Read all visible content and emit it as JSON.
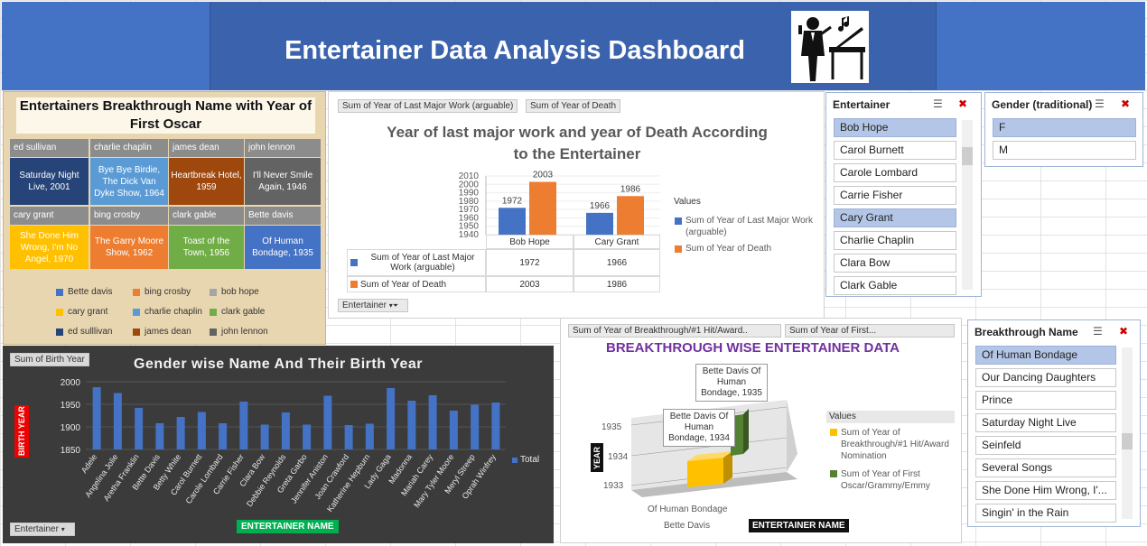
{
  "header": {
    "title": "Entertainer Data Analysis Dashboard"
  },
  "treemap_panel": {
    "title": "Entertainers  Breakthrough Name with Year of First Oscar",
    "rows": [
      {
        "heads": [
          "ed sullivan",
          "charlie chaplin",
          "james dean",
          "john lennon"
        ],
        "cells": [
          "Saturday Night Live, 2001",
          "Bye Bye Birdie, The Dick Van Dyke Show, 1964",
          "Heartbreak Hotel, 1959",
          "I'll Never Smile Again, 1946"
        ]
      },
      {
        "heads": [
          "cary grant",
          "bing crosby",
          "clark gable",
          "Bette davis"
        ],
        "cells": [
          "She Done Him Wrong, I'm No Angel, 1970",
          "The Garry Moore Show, 1962",
          "Toast of the Town, 1956",
          "Of Human Bondage, 1935"
        ]
      }
    ],
    "legend": [
      "Bette davis",
      "bing crosby",
      "bob hope",
      "cary grant",
      "charlie chaplin",
      "clark gable",
      "ed sulllivan",
      "james dean",
      "john lennon"
    ],
    "colors": {
      "Bette davis": "#4472c4",
      "bing crosby": "#ed7d31",
      "bob hope": "#a5a5a5",
      "cary grant": "#ffc000",
      "charlie chaplin": "#5b9bd5",
      "clark gable": "#70ad47",
      "ed sulllivan": "#264478",
      "james dean": "#9e480e",
      "john lennon": "#636363"
    }
  },
  "pivot1": {
    "field_buttons": [
      "Sum of Year of Last Major Work (arguable)",
      "Sum of Year of Death"
    ],
    "title": "Year of last major work and year of Death According to the Entertainer",
    "legend_title": "Values",
    "filter_button": "Entertainer",
    "table": {
      "row_labels": [
        "Sum of Year of Last Major Work (arguable)",
        "Sum of Year of Death"
      ],
      "cols": [
        "Bob Hope",
        "Cary Grant"
      ],
      "values": [
        [
          "1972",
          "1966"
        ],
        [
          "2003",
          "1986"
        ]
      ]
    }
  },
  "chart_data": [
    {
      "type": "bar",
      "title": "Year of last major work and year of Death According to the Entertainer",
      "categories": [
        "Bob Hope",
        "Cary Grant"
      ],
      "series": [
        {
          "name": "Sum of Year of Last Major Work (arguable)",
          "values": [
            1972,
            1966
          ],
          "color": "#4472c4"
        },
        {
          "name": "Sum of Year of Death",
          "values": [
            2003,
            1986
          ],
          "color": "#ed7d31"
        }
      ],
      "yticks": [
        "2010",
        "2000",
        "1990",
        "1980",
        "1970",
        "1960",
        "1950",
        "1940"
      ],
      "ylim": [
        1940,
        2010
      ],
      "legend": "right"
    },
    {
      "type": "bar",
      "title": "Gender wise Name And Their Birth Year",
      "xlabel": "ENTERTAINER NAME",
      "ylabel": "BIRTH YEAR",
      "categories": [
        "Adele",
        "Angelina Jolie",
        "Aretha Franklin",
        "Bette Davis",
        "Betty White",
        "Carol Burnett",
        "Carole Lombard",
        "Carrie Fisher",
        "Clara Bow",
        "Debbie Reynolds",
        "Greta Garbo",
        "Jennifer Aniston",
        "Joan Crawford",
        "Katherine Hepburn",
        "Lady Gaga",
        "Madonna",
        "Mariah Carey",
        "Mary Tyler Moore",
        "Meryl Streep",
        "Oprah Winfrey"
      ],
      "series": [
        {
          "name": "Total",
          "values": [
            1988,
            1975,
            1942,
            1908,
            1922,
            1933,
            1908,
            1956,
            1905,
            1932,
            1905,
            1969,
            1904,
            1907,
            1986,
            1958,
            1970,
            1936,
            1949,
            1954
          ],
          "color": "#4472c4"
        }
      ],
      "yticks": [
        "2000",
        "1950",
        "1900",
        "1850"
      ],
      "ylim": [
        1850,
        2000
      ],
      "legend": "right"
    },
    {
      "type": "bar",
      "title": "BREAKTHROUGH WISE ENTERTAINER DATA",
      "xlabel": "ENTERTAINER NAME",
      "ylabel": "YEAR",
      "categories": [
        "Of Human Bondage / Bette Davis"
      ],
      "series": [
        {
          "name": "Sum of Year of Breakthrough/#1 Hit/Award Nomination",
          "values": [
            1934
          ],
          "color": "#ffc000"
        },
        {
          "name": "Sum of Year of First Oscar/Grammy/Emmy",
          "values": [
            1935
          ],
          "color": "#548235"
        }
      ],
      "yticks": [
        "1935",
        "1934",
        "1933"
      ],
      "legend": "right"
    }
  ],
  "pivot2": {
    "field_button": "Sum of Birth Year",
    "title": "Gender wise Name And Their Birth Year",
    "ylabel": "BIRTH YEAR",
    "xlabel": "ENTERTAINER NAME",
    "legend": "Total",
    "filter_button": "Entertainer"
  },
  "pivot3": {
    "field_buttons": [
      "Sum of Year of Breakthrough/#1 Hit/Award..",
      "Sum of Year of First..."
    ],
    "title": "BREAKTHROUGH WISE ENTERTAINER DATA",
    "legend_title": "Values",
    "legend": [
      "Sum of Year of Breakthrough/#1 Hit/Award Nomination",
      "Sum of Year of First Oscar/Grammy/Emmy"
    ],
    "callouts": [
      "Bette Davis Of Human Bondage, 1935",
      "Bette Davis Of Human Bondage, 1934"
    ],
    "cat1": "Of Human Bondage",
    "cat2": "Bette Davis",
    "ylabel": "YEAR",
    "xlabel": "ENTERTAINER NAME"
  },
  "slicer_entertainer": {
    "title": "Entertainer",
    "items": [
      "Bob Hope",
      "Carol Burnett",
      "Carole Lombard",
      "Carrie Fisher",
      "Cary Grant",
      "Charlie Chaplin",
      "Clara Bow",
      "Clark Gable"
    ],
    "selected": [
      0,
      4
    ]
  },
  "slicer_gender": {
    "title": "Gender (traditional)",
    "items": [
      "F",
      "M"
    ],
    "selected": [
      0
    ]
  },
  "slicer_breakthrough": {
    "title": "Breakthrough Name",
    "items": [
      "Of Human Bondage",
      "Our Dancing Daughters",
      "Prince",
      "Saturday Night Live",
      "Seinfeld",
      "Several Songs",
      "She Done Him Wrong, I'...",
      "Singin' in the Rain"
    ],
    "selected": [
      0
    ]
  }
}
